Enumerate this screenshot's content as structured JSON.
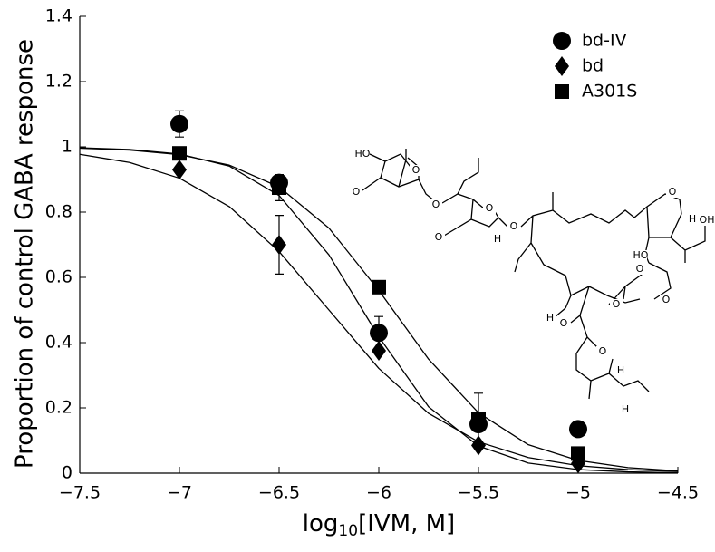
{
  "chart_data": {
    "type": "scatter",
    "xlabel": [
      "log",
      "10",
      "[IVM, M]"
    ],
    "ylabel": "Proportion of control GABA response",
    "xlim": [
      -7.5,
      -4.5
    ],
    "ylim": [
      0,
      1.4
    ],
    "xticks": [
      {
        "value": -7.5,
        "label": "−7.5"
      },
      {
        "value": -7,
        "label": "−7"
      },
      {
        "value": -6.5,
        "label": "−6.5"
      },
      {
        "value": -6,
        "label": "−6"
      },
      {
        "value": -5.5,
        "label": "−5.5"
      },
      {
        "value": -5,
        "label": "−5"
      },
      {
        "value": -4.5,
        "label": "−4.5"
      }
    ],
    "yticks": [
      0,
      0.2,
      0.4,
      0.6,
      0.8,
      1,
      1.2,
      1.4
    ],
    "legend": "upper-right",
    "x": [
      -7,
      -6.5,
      -6,
      -5.5,
      -5
    ],
    "fit_x": [
      -7.5,
      -7.25,
      -7,
      -6.75,
      -6.5,
      -6.25,
      -6,
      -5.75,
      -5.5,
      -5.25,
      -5,
      -4.75,
      -4.5
    ],
    "series": [
      {
        "name": "bd-IV",
        "marker": "circle",
        "color": "#000000",
        "values": [
          1.07,
          0.89,
          0.43,
          0.15,
          0.135
        ],
        "errors": [
          0.04,
          null,
          0.05,
          null,
          null
        ],
        "fit": [
          0.997,
          0.992,
          0.978,
          0.941,
          0.851,
          0.669,
          0.418,
          0.203,
          0.083,
          0.031,
          0.011,
          0.004,
          0.001
        ]
      },
      {
        "name": "bd",
        "marker": "diamond",
        "color": "#000000",
        "values": [
          0.93,
          0.7,
          0.375,
          0.085,
          0.03
        ],
        "errors": [
          null,
          0.09,
          null,
          null,
          null
        ],
        "fit": [
          0.977,
          0.952,
          0.904,
          0.817,
          0.679,
          0.5,
          0.321,
          0.183,
          0.096,
          0.048,
          0.023,
          0.011,
          0.005
        ]
      },
      {
        "name": "A301S",
        "marker": "square",
        "color": "#000000",
        "values": [
          0.98,
          0.875,
          0.57,
          0.165,
          0.06
        ],
        "errors": [
          null,
          0.04,
          null,
          0.08,
          null
        ],
        "fit": [
          0.996,
          0.99,
          0.976,
          0.944,
          0.877,
          0.751,
          0.56,
          0.349,
          0.185,
          0.087,
          0.039,
          0.017,
          0.007
        ]
      }
    ],
    "structure_labels": [
      "HO",
      "O",
      "O",
      "O",
      "O",
      "O",
      "O",
      "H",
      "O",
      "H",
      "OH",
      "HO",
      "O",
      "O",
      "O",
      "H",
      "O",
      "O",
      "H",
      "H"
    ]
  }
}
